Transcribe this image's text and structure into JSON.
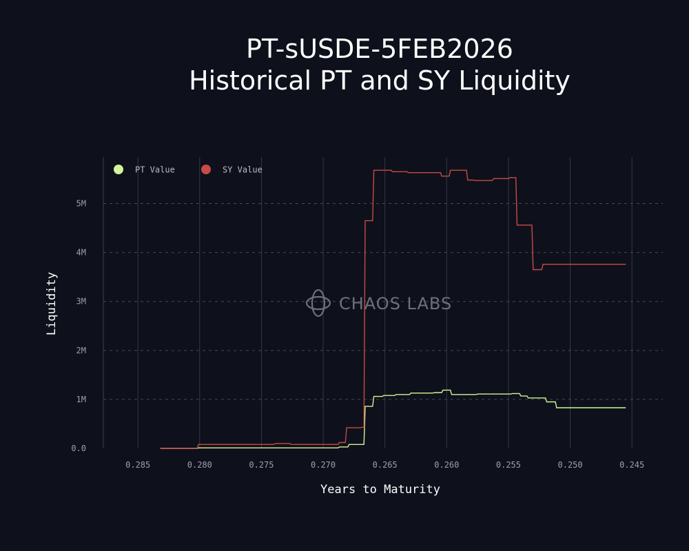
{
  "chart_data": {
    "type": "line",
    "title": [
      "PT-sUSDE-5FEB2026",
      "Historical PT and SY Liquidity"
    ],
    "xlabel": "Years to Maturity",
    "ylabel": "Liquidity",
    "x_reversed": true,
    "xlim": [
      0.2878,
      0.2425
    ],
    "ylim": [
      0,
      5950000
    ],
    "x_ticks": [
      0.285,
      0.28,
      0.275,
      0.27,
      0.265,
      0.26,
      0.255,
      0.25,
      0.245
    ],
    "x_tick_labels": [
      "0.285",
      "0.280",
      "0.275",
      "0.270",
      "0.265",
      "0.260",
      "0.255",
      "0.250",
      "0.245"
    ],
    "y_ticks": [
      0,
      1000000,
      2000000,
      3000000,
      4000000,
      5000000
    ],
    "y_tick_labels": [
      "0.0",
      "1M",
      "2M",
      "3M",
      "4M",
      "5M"
    ],
    "grid": true,
    "legend_position": "top-left",
    "watermark": "CHAOS LABS",
    "series": [
      {
        "name": "PT Value",
        "color": "#d4f59a",
        "points": [
          [
            0.2832,
            0
          ],
          [
            0.2802,
            0
          ],
          [
            0.2801,
            10000
          ],
          [
            0.2778,
            10000
          ],
          [
            0.2695,
            10000
          ],
          [
            0.2688,
            10000
          ],
          [
            0.2687,
            30000
          ],
          [
            0.268,
            30000
          ],
          [
            0.2679,
            80000
          ],
          [
            0.267,
            80000
          ],
          [
            0.2669,
            80000
          ],
          [
            0.2667,
            80000
          ],
          [
            0.2666,
            860000
          ],
          [
            0.266,
            860000
          ],
          [
            0.2659,
            1060000
          ],
          [
            0.2652,
            1060000
          ],
          [
            0.2651,
            1080000
          ],
          [
            0.2642,
            1080000
          ],
          [
            0.2641,
            1100000
          ],
          [
            0.263,
            1100000
          ],
          [
            0.2629,
            1130000
          ],
          [
            0.2611,
            1130000
          ],
          [
            0.261,
            1140000
          ],
          [
            0.2604,
            1140000
          ],
          [
            0.2603,
            1190000
          ],
          [
            0.2597,
            1190000
          ],
          [
            0.2596,
            1100000
          ],
          [
            0.2576,
            1100000
          ],
          [
            0.2575,
            1110000
          ],
          [
            0.256,
            1110000
          ],
          [
            0.2548,
            1110000
          ],
          [
            0.2547,
            1120000
          ],
          [
            0.2541,
            1120000
          ],
          [
            0.254,
            1070000
          ],
          [
            0.2535,
            1070000
          ],
          [
            0.2534,
            1030000
          ],
          [
            0.252,
            1030000
          ],
          [
            0.2519,
            950000
          ],
          [
            0.2512,
            950000
          ],
          [
            0.2511,
            830000
          ],
          [
            0.2455,
            830000
          ]
        ]
      },
      {
        "name": "SY Value",
        "color": "#c94a4a",
        "points": [
          [
            0.2832,
            0
          ],
          [
            0.2802,
            0
          ],
          [
            0.2801,
            80000
          ],
          [
            0.274,
            80000
          ],
          [
            0.2739,
            100000
          ],
          [
            0.2727,
            100000
          ],
          [
            0.2726,
            80000
          ],
          [
            0.2688,
            80000
          ],
          [
            0.2687,
            120000
          ],
          [
            0.2682,
            120000
          ],
          [
            0.2681,
            420000
          ],
          [
            0.267,
            420000
          ],
          [
            0.2669,
            430000
          ],
          [
            0.2667,
            430000
          ],
          [
            0.2666,
            4650000
          ],
          [
            0.266,
            4650000
          ],
          [
            0.2659,
            5680000
          ],
          [
            0.2645,
            5680000
          ],
          [
            0.2644,
            5650000
          ],
          [
            0.2632,
            5650000
          ],
          [
            0.2631,
            5630000
          ],
          [
            0.2605,
            5630000
          ],
          [
            0.2604,
            5560000
          ],
          [
            0.2598,
            5560000
          ],
          [
            0.2597,
            5680000
          ],
          [
            0.2584,
            5680000
          ],
          [
            0.2583,
            5480000
          ],
          [
            0.2578,
            5480000
          ],
          [
            0.2577,
            5470000
          ],
          [
            0.2563,
            5470000
          ],
          [
            0.2562,
            5510000
          ],
          [
            0.255,
            5510000
          ],
          [
            0.2549,
            5530000
          ],
          [
            0.2544,
            5530000
          ],
          [
            0.2543,
            4560000
          ],
          [
            0.2531,
            4560000
          ],
          [
            0.253,
            3650000
          ],
          [
            0.2523,
            3650000
          ],
          [
            0.2522,
            3760000
          ],
          [
            0.2455,
            3760000
          ]
        ]
      }
    ]
  }
}
